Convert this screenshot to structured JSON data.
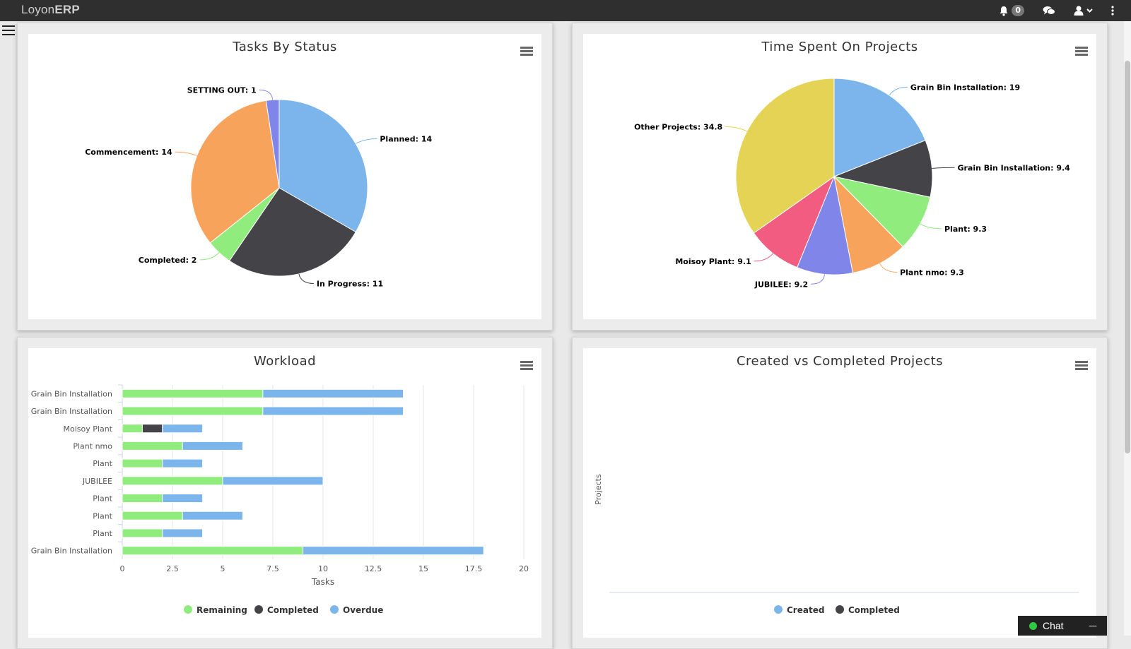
{
  "app": {
    "brand_light": "Loyon",
    "brand_bold": "ERP",
    "notifications_count": "0",
    "icons": [
      "bell-icon",
      "chat-bubbles-icon",
      "user-icon",
      "chevron-down-icon",
      "kebab-menu-icon",
      "hamburger-menu-icon"
    ]
  },
  "panels": {
    "tasks": {
      "title": "Tasks By Status"
    },
    "time": {
      "title": "Time Spent On Projects"
    },
    "workload": {
      "title": "Workload"
    },
    "created": {
      "title": "Created vs Completed Projects"
    }
  },
  "chat": {
    "label": "Chat",
    "minimize": "—"
  },
  "chart_data": [
    {
      "type": "pie",
      "title": "Tasks By Status",
      "slices": [
        {
          "name": "Planned",
          "value": 14,
          "label": "Planned: 14",
          "color": "#7cb5ec"
        },
        {
          "name": "In Progress",
          "value": 11,
          "label": "In Progress: 11",
          "color": "#434348"
        },
        {
          "name": "Completed",
          "value": 2,
          "label": "Completed: 2",
          "color": "#90ed7d"
        },
        {
          "name": "Commencement",
          "value": 14,
          "label": "Commencement: 14",
          "color": "#f7a35c"
        },
        {
          "name": "SETTING OUT",
          "value": 1,
          "label": "SETTING OUT: 1",
          "color": "#8085e9"
        }
      ]
    },
    {
      "type": "pie",
      "title": "Time Spent On Projects",
      "slices": [
        {
          "name": "Grain Bin Installation",
          "value": 19,
          "label": "Grain Bin Installation: 19",
          "color": "#7cb5ec"
        },
        {
          "name": "Grain Bin Installation",
          "value": 9.4,
          "label": "Grain Bin Installation: 9.4",
          "color": "#434348"
        },
        {
          "name": "Plant",
          "value": 9.3,
          "label": "Plant: 9.3",
          "color": "#90ed7d"
        },
        {
          "name": "Plant nmo",
          "value": 9.3,
          "label": "Plant nmo: 9.3",
          "color": "#f7a35c"
        },
        {
          "name": "JUBILEE",
          "value": 9.2,
          "label": "JUBILEE: 9.2",
          "color": "#8085e9"
        },
        {
          "name": "Moisoy Plant",
          "value": 9.1,
          "label": "Moisoy Plant: 9.1",
          "color": "#f15c80"
        },
        {
          "name": "Other Projects",
          "value": 34.8,
          "label": "Other Projects: 34.8",
          "color": "#e4d354"
        }
      ]
    },
    {
      "type": "bar",
      "orientation": "horizontal",
      "stacked": true,
      "title": "Workload",
      "xlabel": "Tasks",
      "xlim": [
        0,
        20
      ],
      "xticks": [
        "0",
        "2.5",
        "5",
        "7.5",
        "10",
        "12.5",
        "15",
        "17.5",
        "20"
      ],
      "grid": true,
      "legend": "bottom",
      "categories": [
        "Grain Bin Installation",
        "Grain Bin Installation",
        "Moisoy Plant",
        "Plant nmo",
        "Plant",
        "JUBILEE",
        "Plant",
        "Plant",
        "Plant",
        "Grain Bin Installation"
      ],
      "series": [
        {
          "name": "Remaining",
          "color": "#90ed7d",
          "values": [
            7,
            7,
            1,
            3,
            2,
            5,
            2,
            3,
            2,
            9
          ]
        },
        {
          "name": "Completed",
          "color": "#434348",
          "values": [
            0,
            0,
            1,
            0,
            0,
            0,
            0,
            0,
            0,
            0
          ]
        },
        {
          "name": "Overdue",
          "color": "#7cb5ec",
          "values": [
            7,
            7,
            2,
            3,
            2,
            5,
            2,
            3,
            2,
            9
          ]
        }
      ]
    },
    {
      "type": "line",
      "title": "Created vs Completed Projects",
      "ylabel": "Projects",
      "legend": "bottom",
      "series": [
        {
          "name": "Created",
          "color": "#7cb5ec",
          "values": []
        },
        {
          "name": "Completed",
          "color": "#434348",
          "values": []
        }
      ]
    }
  ]
}
